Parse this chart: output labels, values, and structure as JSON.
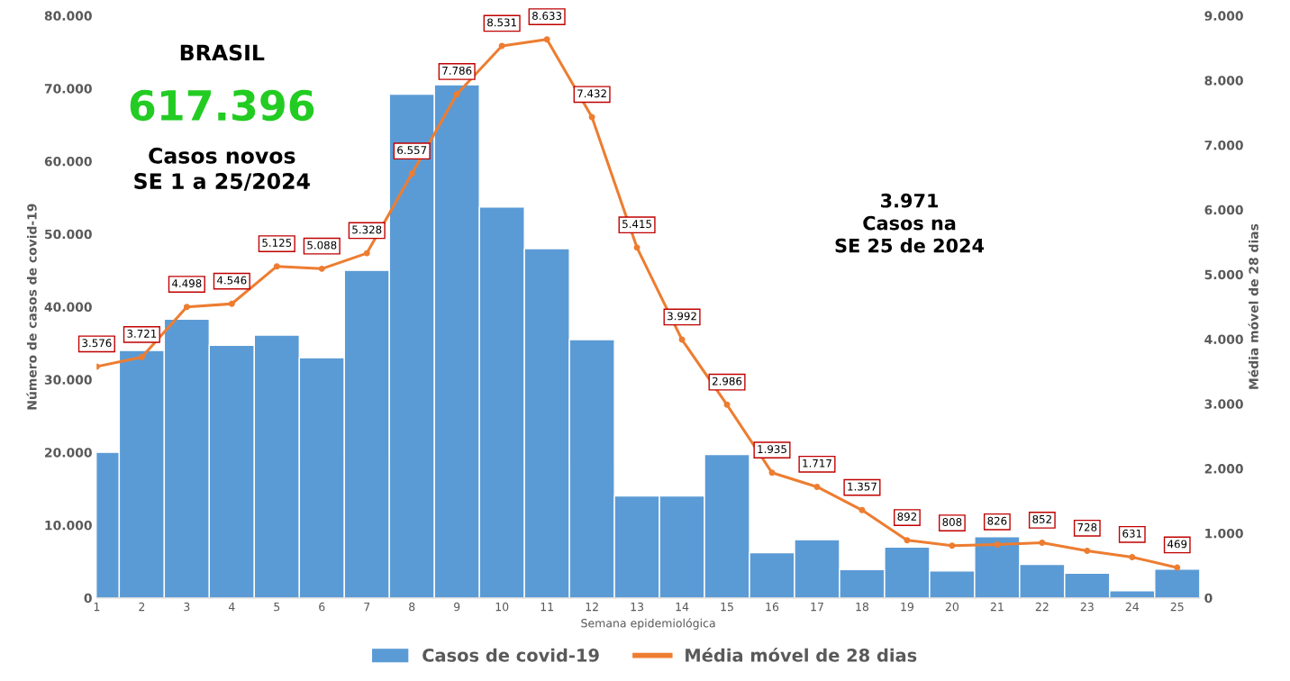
{
  "chart_data": {
    "type": "bar",
    "xlabel": "Semana epidemiológica",
    "ylabel": "Número de casos de covid-19",
    "y2label": "Média móvel de 28 dias",
    "categories": [
      "1",
      "2",
      "3",
      "4",
      "5",
      "6",
      "7",
      "8",
      "9",
      "10",
      "11",
      "12",
      "13",
      "14",
      "15",
      "16",
      "17",
      "18",
      "19",
      "20",
      "21",
      "22",
      "23",
      "24",
      "25"
    ],
    "series": [
      {
        "name": "Casos de covid-19",
        "color": "#5b9bd5",
        "values": [
          20000,
          34000,
          38300,
          34700,
          36100,
          33000,
          45000,
          69200,
          70500,
          53700,
          48000,
          35500,
          14000,
          14000,
          19700,
          6200,
          8000,
          3900,
          7000,
          3700,
          8400,
          4600,
          3400,
          1000,
          3971
        ]
      },
      {
        "name": "Média móvel de 28 dias",
        "type": "line",
        "axis": "y2",
        "color": "#ed7d31",
        "marker": "circle",
        "values": [
          3576,
          3721,
          4498,
          4546,
          5125,
          5088,
          5328,
          6557,
          7786,
          8531,
          8633,
          7432,
          5415,
          3992,
          2986,
          1935,
          1717,
          1357,
          892,
          808,
          826,
          852,
          728,
          631,
          469
        ],
        "value_labels": [
          "3.576",
          "3.721",
          "4.498",
          "4.546",
          "5.125",
          "5.088",
          "5.328",
          "6.557",
          "7.786",
          "8.531",
          "8.633",
          "7.432",
          "5.415",
          "3.992",
          "2.986",
          "1.935",
          "1.717",
          "1.357",
          "892",
          "808",
          "826",
          "852",
          "728",
          "631",
          "469"
        ]
      }
    ],
    "ylim": [
      0,
      80000
    ],
    "yticks": [
      {
        "value": 0,
        "label": "0"
      },
      {
        "value": 10000,
        "label": "10.000"
      },
      {
        "value": 20000,
        "label": "20.000"
      },
      {
        "value": 30000,
        "label": "30.000"
      },
      {
        "value": 40000,
        "label": "40.000"
      },
      {
        "value": 50000,
        "label": "50.000"
      },
      {
        "value": 60000,
        "label": "60.000"
      },
      {
        "value": 70000,
        "label": "70.000"
      },
      {
        "value": 80000,
        "label": "80.000"
      }
    ],
    "y2lim": [
      0,
      9000
    ],
    "y2ticks": [
      {
        "value": 0,
        "label": "0"
      },
      {
        "value": 1000,
        "label": "1.000"
      },
      {
        "value": 2000,
        "label": "2.000"
      },
      {
        "value": 3000,
        "label": "3.000"
      },
      {
        "value": 4000,
        "label": "4.000"
      },
      {
        "value": 5000,
        "label": "5.000"
      },
      {
        "value": 6000,
        "label": "6.000"
      },
      {
        "value": 7000,
        "label": "7.000"
      },
      {
        "value": 8000,
        "label": "8.000"
      },
      {
        "value": 9000,
        "label": "9.000"
      }
    ],
    "annotations": [
      "BRASIL",
      "617.396",
      "Casos novos\nSE 1 a 25/2024",
      "3.971\nCasos na\nSE 25 de 2024"
    ],
    "legend": "bottom",
    "grid": false
  }
}
